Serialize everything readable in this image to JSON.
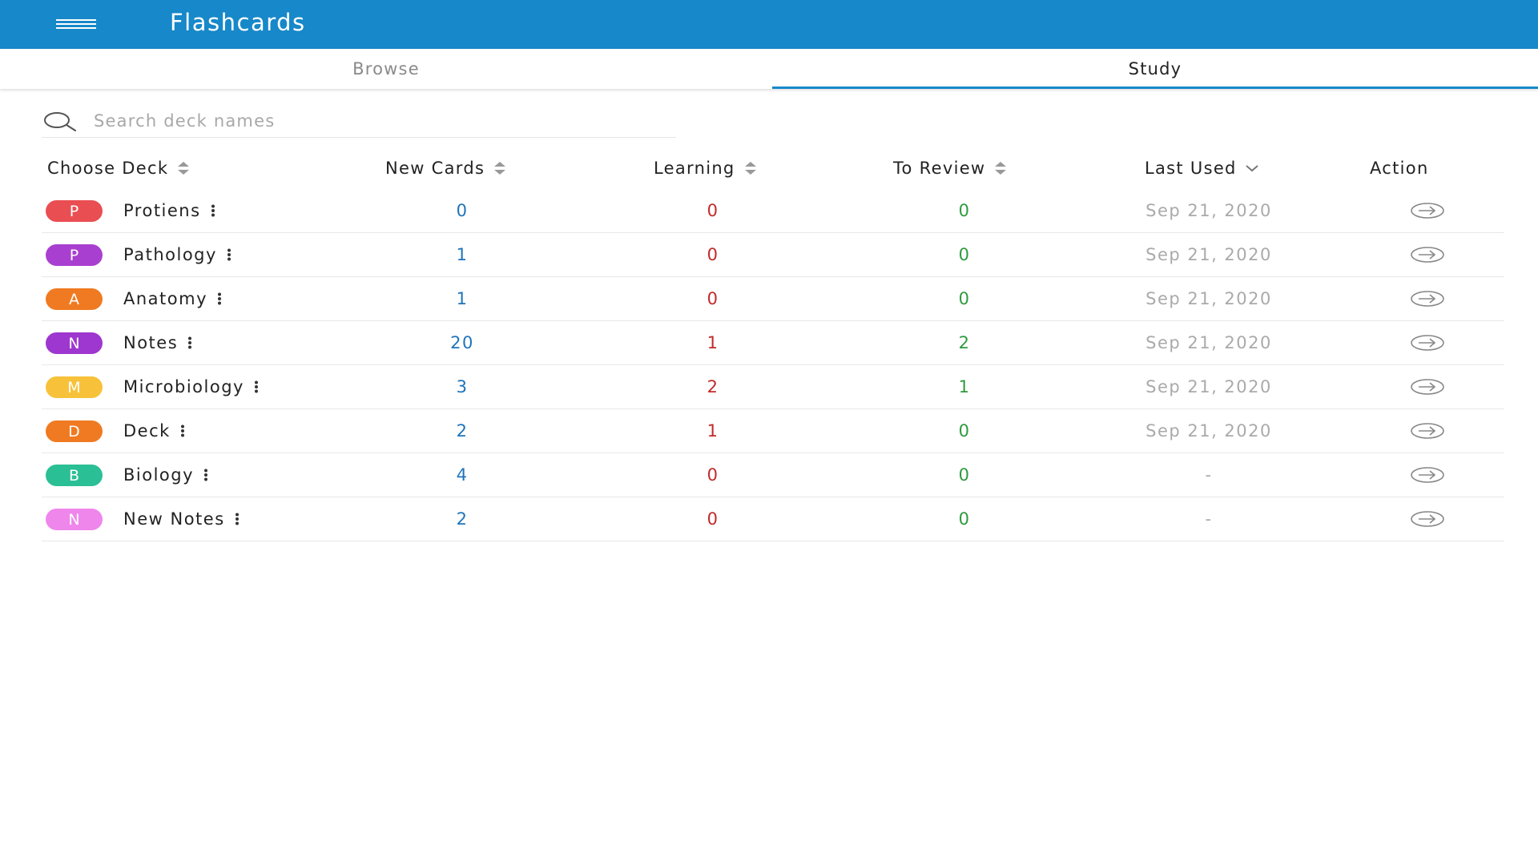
{
  "app": {
    "title": "Flashcards",
    "bar_color": "#1788c9"
  },
  "tabs": [
    {
      "label": "Browse",
      "active": false
    },
    {
      "label": "Study",
      "active": true
    }
  ],
  "search": {
    "placeholder": "Search deck names",
    "value": ""
  },
  "table": {
    "columns": {
      "deck": "Choose Deck",
      "new": "New Cards",
      "learning": "Learning",
      "review": "To Review",
      "last_used": "Last Used",
      "action": "Action"
    },
    "rows": [
      {
        "letter": "P",
        "color": "#e94e53",
        "name": "Protiens",
        "new": "0",
        "learning": "0",
        "review": "0",
        "last_used": "Sep 21, 2020"
      },
      {
        "letter": "P",
        "color": "#a93fd0",
        "name": "Pathology",
        "new": "1",
        "learning": "0",
        "review": "0",
        "last_used": "Sep 21, 2020"
      },
      {
        "letter": "A",
        "color": "#f07a21",
        "name": "Anatomy",
        "new": "1",
        "learning": "0",
        "review": "0",
        "last_used": "Sep 21, 2020"
      },
      {
        "letter": "N",
        "color": "#9e37cf",
        "name": "Notes",
        "new": "20",
        "learning": "1",
        "review": "2",
        "last_used": "Sep 21, 2020"
      },
      {
        "letter": "M",
        "color": "#f7c23a",
        "name": "Microbiology",
        "new": "3",
        "learning": "2",
        "review": "1",
        "last_used": "Sep 21, 2020"
      },
      {
        "letter": "D",
        "color": "#f07a21",
        "name": "Deck",
        "new": "2",
        "learning": "1",
        "review": "0",
        "last_used": "Sep 21, 2020"
      },
      {
        "letter": "B",
        "color": "#2bbf95",
        "name": "Biology",
        "new": "4",
        "learning": "0",
        "review": "0",
        "last_used": "-"
      },
      {
        "letter": "N",
        "color": "#ef86ec",
        "name": "New Notes",
        "new": "2",
        "learning": "0",
        "review": "0",
        "last_used": "-"
      }
    ]
  },
  "icons": {
    "menu": "hamburger-menu-icon",
    "search": "search-icon",
    "sort": "sort-icon",
    "sort_desc": "chevron-down-icon",
    "more": "more-vertical-icon",
    "action": "arrow-circle-right-icon"
  }
}
